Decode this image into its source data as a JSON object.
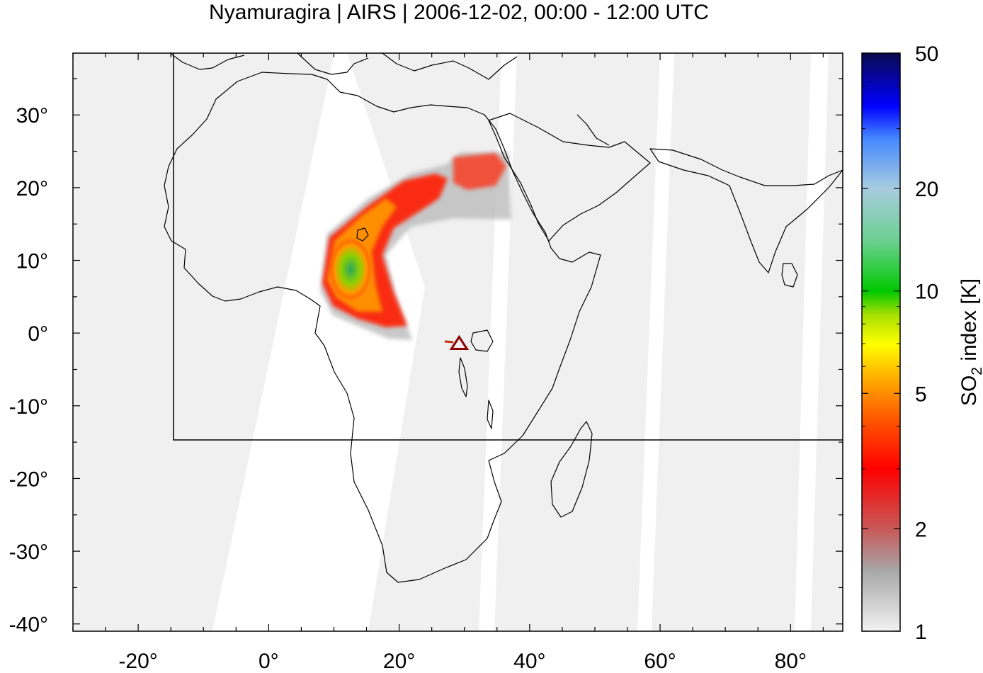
{
  "title": "Nyamuragira | AIRS | 2006-12-02, 00:00 - 12:00 UTC",
  "map": {
    "projection": "plate-carree",
    "lon_range": [
      -30,
      88
    ],
    "lat_range": [
      -41,
      38.5
    ],
    "x_ticks": [
      {
        "value": -20,
        "label": "-20°"
      },
      {
        "value": 0,
        "label": "0°"
      },
      {
        "value": 20,
        "label": "20°"
      },
      {
        "value": 40,
        "label": "40°"
      },
      {
        "value": 60,
        "label": "60°"
      },
      {
        "value": 80,
        "label": "80°"
      }
    ],
    "y_ticks": [
      {
        "value": 30,
        "label": "30°"
      },
      {
        "value": 20,
        "label": "20°"
      },
      {
        "value": 10,
        "label": "10°"
      },
      {
        "value": 0,
        "label": "0°"
      },
      {
        "value": -10,
        "label": "-10°"
      },
      {
        "value": -20,
        "label": "-20°"
      },
      {
        "value": -30,
        "label": "-30°"
      },
      {
        "value": -40,
        "label": "-40°"
      }
    ],
    "region_box": {
      "lon_min": -15,
      "lon_max": 88,
      "lat_min": -15,
      "lat_max": 38.5
    },
    "volcano": {
      "name": "Nyamuragira",
      "lon": 29.2,
      "lat": -1.4,
      "marker_color": "#8b0000"
    },
    "swath_color": "#f0f0f0",
    "coastline_color": "#000000"
  },
  "colorbar": {
    "label_main": "SO",
    "label_sub": "2",
    "label_rest": " index [K]",
    "scale": "log",
    "min": 1,
    "max": 50,
    "ticks": [
      {
        "value": 50,
        "label": "50"
      },
      {
        "value": 20,
        "label": "20"
      },
      {
        "value": 10,
        "label": "10"
      },
      {
        "value": 5,
        "label": "5"
      },
      {
        "value": 2,
        "label": "2"
      },
      {
        "value": 1,
        "label": "1"
      }
    ],
    "stops": [
      {
        "value": 1,
        "color": "#f2f2f2"
      },
      {
        "value": 1.5,
        "color": "#a8a8a8"
      },
      {
        "value": 2,
        "color": "#c85858"
      },
      {
        "value": 3,
        "color": "#ff0000"
      },
      {
        "value": 4,
        "color": "#ff4a00"
      },
      {
        "value": 5,
        "color": "#ff8c00"
      },
      {
        "value": 7,
        "color": "#ffff00"
      },
      {
        "value": 8.5,
        "color": "#a8e000"
      },
      {
        "value": 10,
        "color": "#00c800"
      },
      {
        "value": 14,
        "color": "#6cd090"
      },
      {
        "value": 20,
        "color": "#a8cce0"
      },
      {
        "value": 28,
        "color": "#4488ff"
      },
      {
        "value": 35,
        "color": "#0000ff"
      },
      {
        "value": 50,
        "color": "#0a0a50"
      }
    ]
  }
}
